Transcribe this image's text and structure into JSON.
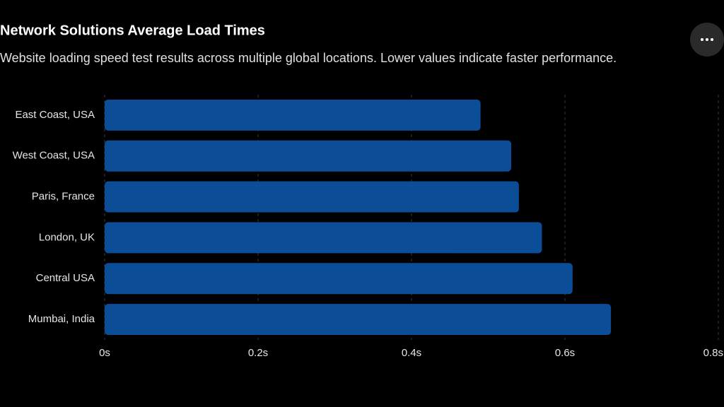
{
  "chart_data": {
    "type": "bar",
    "orientation": "horizontal",
    "title": "Network Solutions Average Load Times",
    "subtitle": "Website loading speed test results across multiple global locations. Lower values indicate faster performance.",
    "categories": [
      "East Coast, USA",
      "West Coast, USA",
      "Paris, France",
      "London, UK",
      "Central USA",
      "Mumbai, India"
    ],
    "values": [
      0.49,
      0.53,
      0.54,
      0.57,
      0.61,
      0.66
    ],
    "color": "#0b4d96",
    "xlim": [
      0,
      0.8
    ],
    "xticks": [
      {
        "value": 0,
        "label": "0s"
      },
      {
        "value": 0.2,
        "label": "0.2s"
      },
      {
        "value": 0.4,
        "label": "0.4s"
      },
      {
        "value": 0.6,
        "label": "0.6s"
      },
      {
        "value": 0.8,
        "label": "0.8s"
      }
    ],
    "grid": true
  }
}
